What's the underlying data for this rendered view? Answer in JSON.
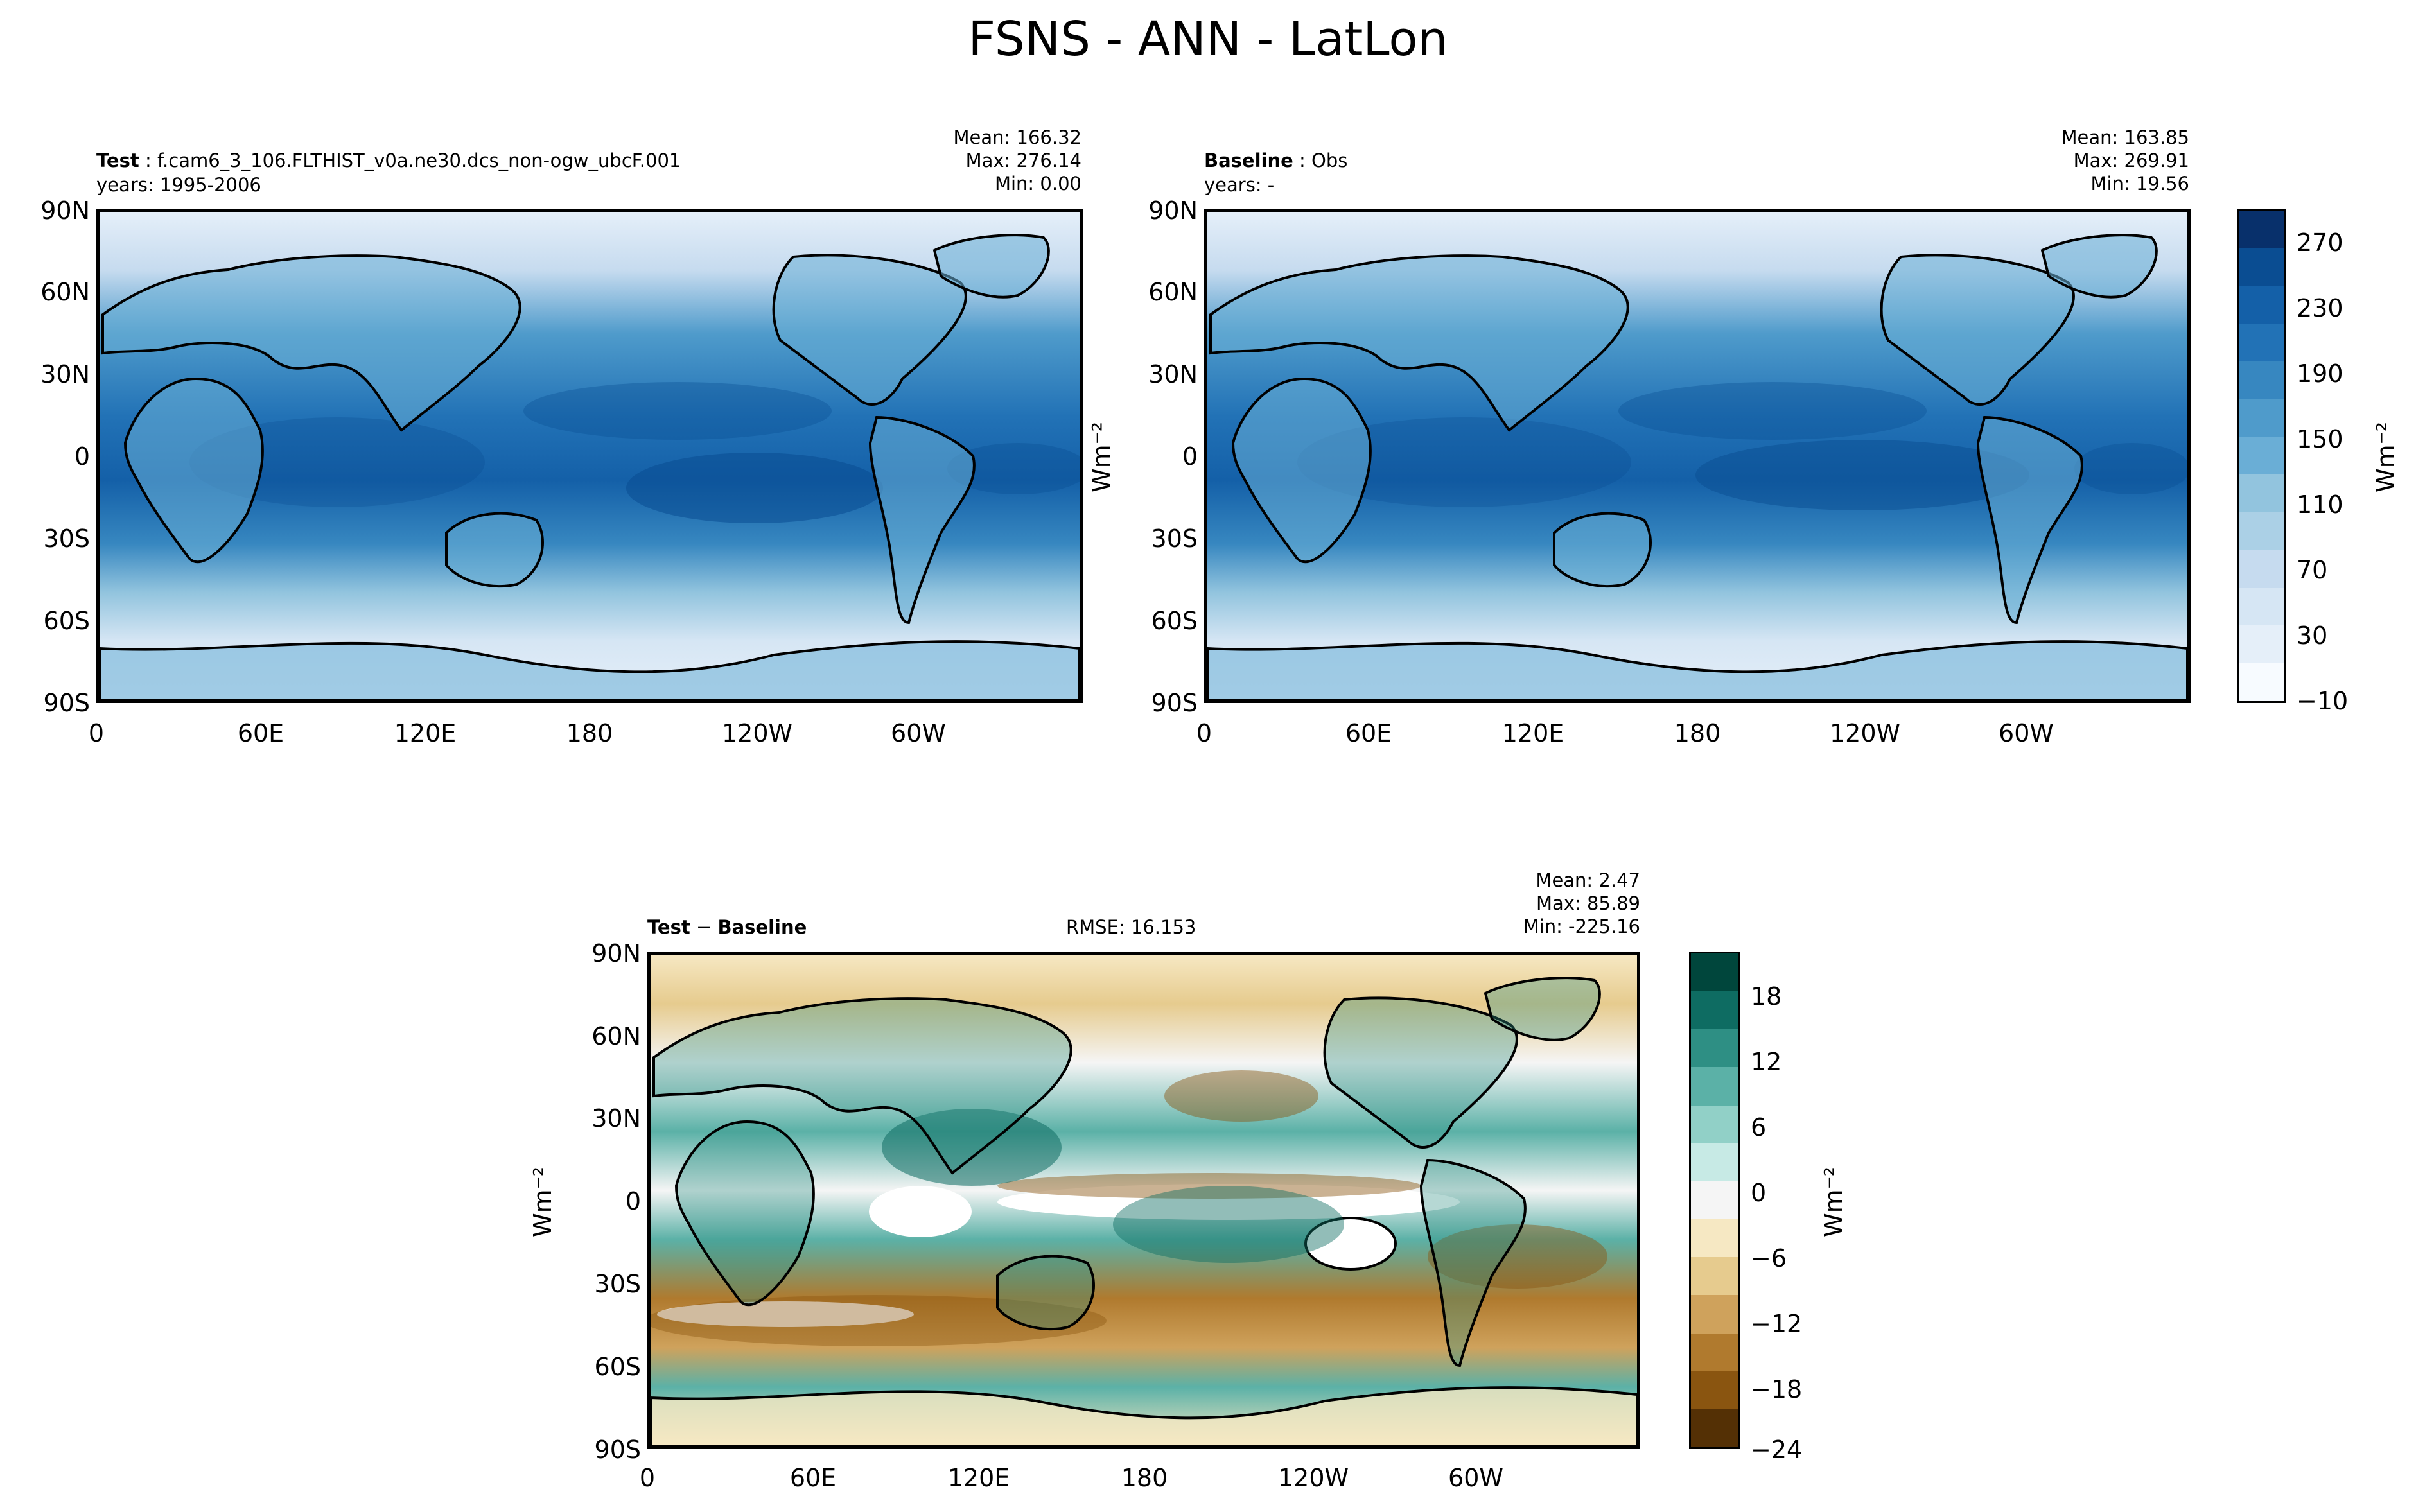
{
  "title": "FSNS - ANN - LatLon",
  "panels": {
    "test": {
      "label_bold": "Test",
      "label_sep": " : ",
      "label_text": "f.cam6_3_106.FLTHIST_v0a.ne30.dcs_non-ogw_ubcF.001",
      "years": "years: 1995-2006",
      "mean": "Mean: 166.32",
      "max": "Max: 276.14",
      "min": "Min:  0.00"
    },
    "baseline": {
      "label_bold": "Baseline",
      "label_sep": " : ",
      "label_text": "Obs",
      "years": "years: -",
      "mean": "Mean: 163.85",
      "max": "Max: 269.91",
      "min": "Min: 19.56"
    },
    "diff": {
      "label_bold": "Test",
      "label_sep": " − ",
      "label_text": "Baseline",
      "rmse": "RMSE: 16.153",
      "mean": "Mean:  2.47",
      "max": "Max: 85.89",
      "min": "Min: -225.16"
    }
  },
  "axes": {
    "lat_ticks": [
      "90N",
      "60N",
      "30N",
      "0",
      "30S",
      "60S",
      "90S"
    ],
    "lon_ticks": [
      "0",
      "60E",
      "120E",
      "180",
      "120W",
      "60W"
    ]
  },
  "units": "Wm⁻²",
  "colorbar_main": {
    "ticks": [
      "270",
      "230",
      "190",
      "150",
      "110",
      "70",
      "30",
      "−10"
    ],
    "colors": [
      "#f7fbff",
      "#e5eff9",
      "#d6e6f4",
      "#c6dbef",
      "#abd0e6",
      "#92c4de",
      "#6aaed6",
      "#4f9bcb",
      "#3787c0",
      "#2272b6",
      "#1460a8",
      "#0a4d92",
      "#08306b"
    ]
  },
  "colorbar_diff": {
    "ticks": [
      "18",
      "12",
      "6",
      "0",
      "−6",
      "−12",
      "−18",
      "−24"
    ],
    "colors": [
      "#00463c",
      "#0e6c62",
      "#2e8f84",
      "#5bb1a7",
      "#91d0c7",
      "#c7eae5",
      "#f5f5f5",
      "#f6e8c3",
      "#e6cb8e",
      "#cfa25c",
      "#b07a2e",
      "#8a5510",
      "#543005"
    ]
  }
}
